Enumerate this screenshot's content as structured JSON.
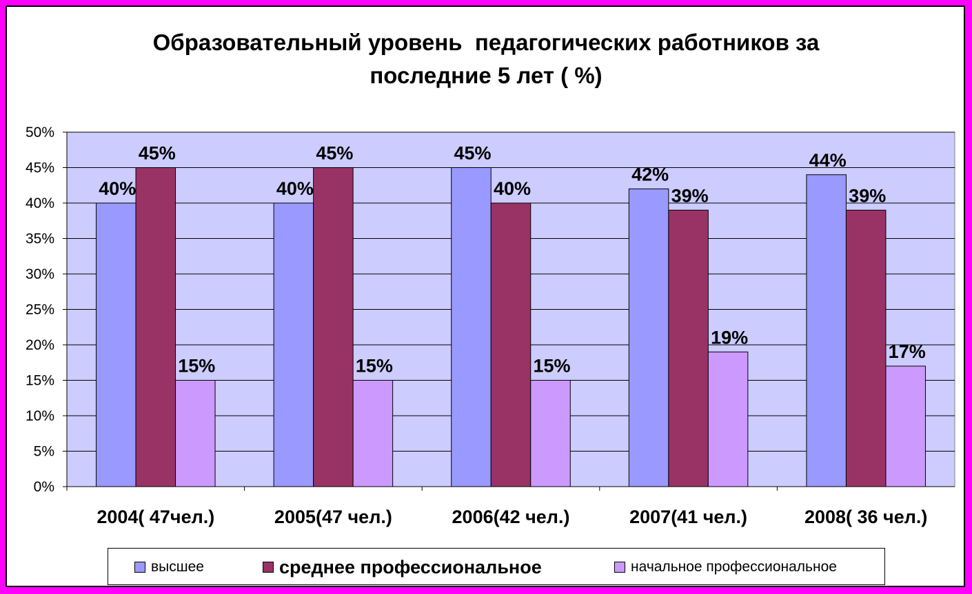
{
  "chart_data": {
    "type": "bar",
    "title_lines": [
      "Образовательный уровень  педагогических работников за",
      "последние 5 лет ( %)"
    ],
    "categories": [
      "2004( 47чел.)",
      "2005(47 чел.)",
      "2006(42 чел.)",
      "2007(41 чел.)",
      "2008( 36 чел.)"
    ],
    "series": [
      {
        "name": "высшее",
        "values": [
          40,
          40,
          45,
          42,
          44
        ],
        "color": "#9999ff",
        "labels": [
          "40%",
          "40%",
          "45%",
          "42%",
          "44%"
        ]
      },
      {
        "name": "среднее профессиональное",
        "values": [
          45,
          45,
          40,
          39,
          39
        ],
        "color": "#993366",
        "labels": [
          "45%",
          "45%",
          "40%",
          "39%",
          "39%"
        ]
      },
      {
        "name": "начальное профессиональное",
        "values": [
          15,
          15,
          15,
          19,
          17
        ],
        "color": "#cc99ff",
        "labels": [
          "15%",
          "15%",
          "15%",
          "19%",
          "17%"
        ]
      }
    ],
    "y_ticks": [
      "0%",
      "5%",
      "10%",
      "15%",
      "20%",
      "25%",
      "30%",
      "35%",
      "40%",
      "45%",
      "50%"
    ],
    "ylim": [
      0,
      50
    ],
    "grid": true,
    "plot_background": "#ccccff",
    "legend_position": "bottom",
    "page_background": "#ff00ff"
  }
}
